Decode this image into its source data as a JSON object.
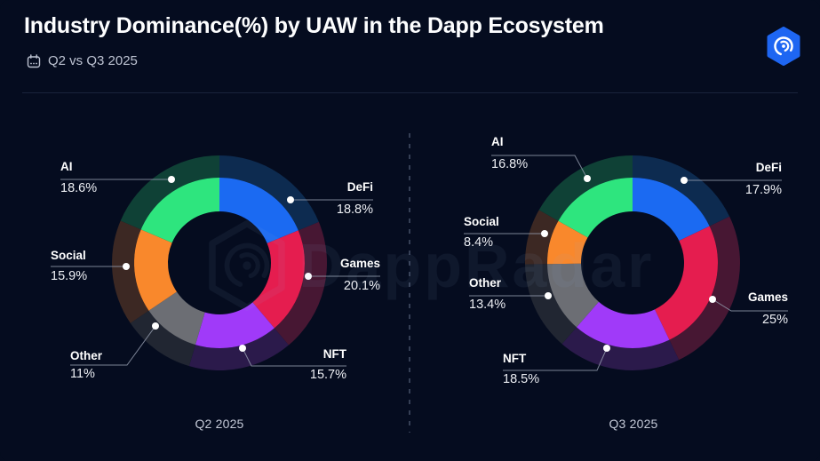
{
  "header": {
    "title": "Industry Dominance(%) by UAW in the Dapp Ecosystem",
    "subtitle": "Q2 vs Q3 2025"
  },
  "watermark": {
    "text": "DappRadar"
  },
  "colors": {
    "background": "#050C1F",
    "divider": "#19233B",
    "dashed_divider": "#424C63",
    "leader_line": "#929AAB",
    "dot": "#FFFFFF",
    "caption_text": "#C5CAD8"
  },
  "palette": {
    "DeFi": {
      "main": "#1B6AF2",
      "shade": "#0D2B50"
    },
    "Games": {
      "main": "#E51D4F",
      "shade": "#471733"
    },
    "NFT": {
      "main": "#A03AF9",
      "shade": "#2B1A4B"
    },
    "Other": {
      "main": "#6C6E74",
      "shade": "#212632"
    },
    "Social": {
      "main": "#F9882C",
      "shade": "#3C2823"
    },
    "AI": {
      "main": "#2EE57E",
      "shade": "#0F4136"
    }
  },
  "chart_data": [
    {
      "type": "pie",
      "subtype": "donut",
      "title": "Q2 2025",
      "unit": "%",
      "start_angle_deg": 0,
      "direction": "clockwise",
      "legend_position": "callouts",
      "segments": [
        {
          "name": "DeFi",
          "value": 18.8,
          "label": "18.8%"
        },
        {
          "name": "Games",
          "value": 20.1,
          "label": "20.1%"
        },
        {
          "name": "NFT",
          "value": 15.7,
          "label": "15.7%"
        },
        {
          "name": "Other",
          "value": 11,
          "label": "11%"
        },
        {
          "name": "Social",
          "value": 15.9,
          "label": "15.9%"
        },
        {
          "name": "AI",
          "value": 18.6,
          "label": "18.6%"
        }
      ]
    },
    {
      "type": "pie",
      "subtype": "donut",
      "title": "Q3 2025",
      "unit": "%",
      "start_angle_deg": 0,
      "direction": "clockwise",
      "legend_position": "callouts",
      "segments": [
        {
          "name": "DeFi",
          "value": 17.9,
          "label": "17.9%"
        },
        {
          "name": "Games",
          "value": 25,
          "label": "25%"
        },
        {
          "name": "NFT",
          "value": 18.5,
          "label": "18.5%"
        },
        {
          "name": "Other",
          "value": 13.4,
          "label": "13.4%"
        },
        {
          "name": "Social",
          "value": 8.4,
          "label": "8.4%"
        },
        {
          "name": "AI",
          "value": 16.8,
          "label": "16.8%"
        }
      ]
    }
  ]
}
